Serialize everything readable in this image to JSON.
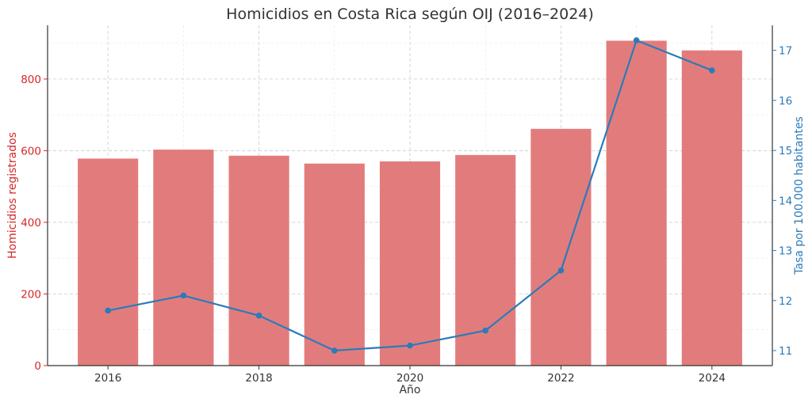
{
  "chart_data": {
    "type": "bar+line",
    "title": "Homicidios en Costa Rica según OIJ (2016–2024)",
    "xlabel": "Año",
    "ylabel_left": "Homicidios registrados",
    "ylabel_right": "Tasa por 100.000 habitantes",
    "x": [
      2016,
      2017,
      2018,
      2019,
      2020,
      2021,
      2022,
      2023,
      2024
    ],
    "x_ticks": [
      2016,
      2018,
      2020,
      2022,
      2024
    ],
    "xlim": [
      2015.2,
      2024.8
    ],
    "bars": {
      "values": [
        578,
        603,
        586,
        564,
        570,
        588,
        661,
        907,
        880
      ],
      "color": "#e27c7c"
    },
    "line": {
      "values": [
        11.8,
        12.1,
        11.7,
        11.0,
        11.1,
        11.4,
        12.6,
        17.2,
        16.6
      ],
      "color": "#2b7bba"
    },
    "ylim_left": [
      0,
      950
    ],
    "yticks_left": [
      0,
      200,
      400,
      600,
      800
    ],
    "ylim_right": [
      10.7,
      17.5
    ],
    "yticks_right": [
      11,
      12,
      13,
      14,
      15,
      16,
      17
    ],
    "left_axis_color": "#d62728",
    "right_axis_color": "#2b7bba",
    "grid": true
  }
}
